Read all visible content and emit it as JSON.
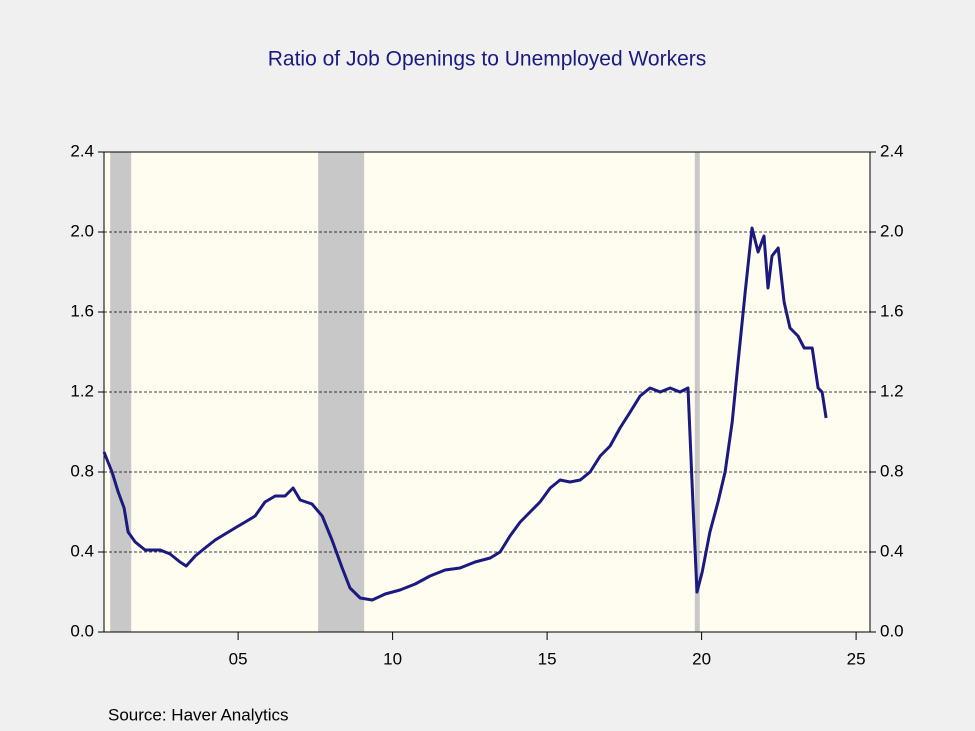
{
  "chart_data": {
    "type": "line",
    "title": "Ratio of Job Openings to Unemployed Workers",
    "source": "Source:  Haver Analytics",
    "x": [
      2000.66,
      2000.92,
      2001.12,
      2001.31,
      2001.44,
      2001.67,
      2001.99,
      2002.48,
      2002.8,
      2003.12,
      2003.32,
      2003.61,
      2003.93,
      2004.26,
      2004.58,
      2004.9,
      2005.23,
      2005.55,
      2005.87,
      2006.2,
      2006.52,
      2006.78,
      2007.01,
      2007.39,
      2007.72,
      2008.04,
      2008.37,
      2008.62,
      2008.95,
      2009.34,
      2009.76,
      2010.24,
      2010.73,
      2011.21,
      2011.7,
      2012.18,
      2012.67,
      2013.16,
      2013.48,
      2013.8,
      2014.13,
      2014.45,
      2014.77,
      2015.1,
      2015.42,
      2015.74,
      2016.07,
      2016.39,
      2016.72,
      2017.04,
      2017.36,
      2017.69,
      2018.01,
      2018.33,
      2018.66,
      2018.98,
      2019.3,
      2019.56,
      2019.73,
      2019.85,
      2020.02,
      2020.27,
      2020.53,
      2020.76,
      2020.99,
      2021.18,
      2021.41,
      2021.63,
      2021.83,
      2022.02,
      2022.15,
      2022.28,
      2022.48,
      2022.67,
      2022.86,
      2023.12,
      2023.32,
      2023.58,
      2023.77,
      2023.9,
      2024.03
    ],
    "series": [
      {
        "color": "#1a1a80",
        "values": [
          0.9,
          0.8,
          0.7,
          0.62,
          0.5,
          0.45,
          0.41,
          0.41,
          0.39,
          0.35,
          0.33,
          0.38,
          0.42,
          0.46,
          0.49,
          0.52,
          0.55,
          0.58,
          0.65,
          0.68,
          0.68,
          0.72,
          0.66,
          0.64,
          0.58,
          0.46,
          0.32,
          0.22,
          0.17,
          0.16,
          0.19,
          0.21,
          0.24,
          0.28,
          0.31,
          0.32,
          0.35,
          0.37,
          0.4,
          0.48,
          0.55,
          0.6,
          0.65,
          0.72,
          0.76,
          0.75,
          0.76,
          0.8,
          0.88,
          0.93,
          1.02,
          1.1,
          1.18,
          1.22,
          1.2,
          1.22,
          1.2,
          1.22,
          0.6,
          0.2,
          0.3,
          0.5,
          0.65,
          0.8,
          1.05,
          1.35,
          1.7,
          2.02,
          1.9,
          1.98,
          1.72,
          1.88,
          1.92,
          1.65,
          1.52,
          1.48,
          1.42,
          1.42,
          1.22,
          1.2,
          1.07
        ]
      }
    ],
    "shading": [
      [
        2000.86,
        2001.54
      ],
      [
        2007.59,
        2009.08
      ],
      [
        2019.78,
        2019.94
      ]
    ],
    "xlim": [
      2000.66,
      2025.45
    ],
    "xticks": [
      {
        "value": 2005,
        "label": "05"
      },
      {
        "value": 2010,
        "label": "10"
      },
      {
        "value": 2015,
        "label": "15"
      },
      {
        "value": 2020,
        "label": "20"
      },
      {
        "value": 2025,
        "label": "25"
      }
    ],
    "ylim": [
      0,
      2.4
    ],
    "yticks": [
      {
        "value": 0,
        "label": "0.0"
      },
      0.4,
      0.8,
      1.2,
      1.6,
      {
        "value": 2,
        "label": "2.0"
      },
      2.4
    ],
    "grid": true
  }
}
